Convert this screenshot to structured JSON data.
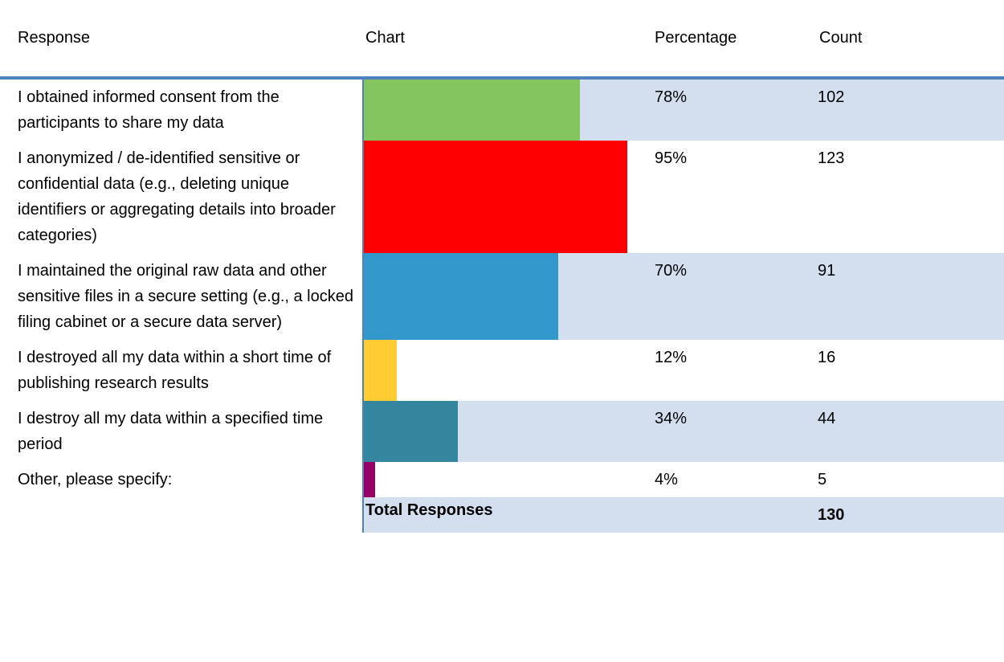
{
  "table": {
    "headers": [
      "Response",
      "Chart",
      "Percentage",
      "Count"
    ],
    "rows": [
      {
        "response": "I obtained informed consent from the participants to share my data",
        "percentage": 78,
        "percentage_label": "78%",
        "count": 102,
        "color": "#84c55f"
      },
      {
        "response": "I anonymized / de-identified sensitive or confidential data (e.g., deleting unique identifiers or aggregating details into broader categories)",
        "percentage": 95,
        "percentage_label": "95%",
        "count": 123,
        "color": "#ff0000"
      },
      {
        "response": "I maintained the original raw data and other sensitive files in a secure setting (e.g., a locked filing cabinet or a secure data server)",
        "percentage": 70,
        "percentage_label": "70%",
        "count": 91,
        "color": "#3399cc"
      },
      {
        "response": "I destroyed all my data within a short time of publishing research results",
        "percentage": 12,
        "percentage_label": "12%",
        "count": 16,
        "color": "#ffcc33"
      },
      {
        "response": "I destroy all my data within a specified time period",
        "percentage": 34,
        "percentage_label": "34%",
        "count": 44,
        "color": "#33869e"
      },
      {
        "response": "Other, please specify:",
        "percentage": 4,
        "percentage_label": "4%",
        "count": 5,
        "color": "#990066"
      }
    ],
    "total": {
      "label": "Total Responses",
      "count": 130
    }
  }
}
